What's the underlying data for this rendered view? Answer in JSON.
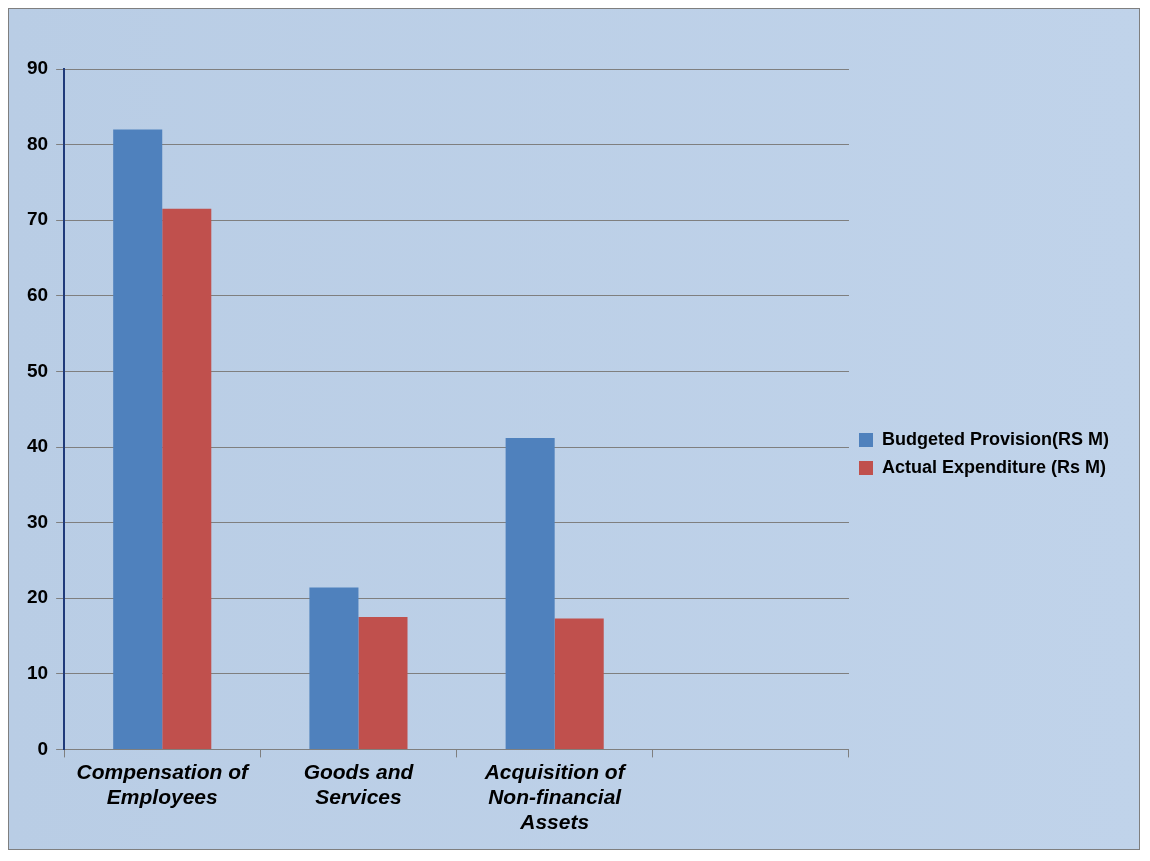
{
  "chart_data": {
    "type": "bar",
    "categories": [
      "Compensation of Employees",
      "Goods and Services",
      "Acquisition of Non-financial Assets",
      null
    ],
    "series": [
      {
        "name": "Budgeted Provision(RS M)",
        "color": "#4f81bd",
        "values": [
          82,
          21.4,
          41.2,
          null
        ]
      },
      {
        "name": "Actual Expenditure (Rs M)",
        "color": "#c0504d",
        "values": [
          71.5,
          17.5,
          17.3,
          null
        ]
      }
    ],
    "ylim": [
      0,
      90
    ],
    "yticks": [
      0,
      10,
      20,
      30,
      40,
      50,
      60,
      70,
      80,
      90
    ],
    "grid": "y",
    "legend": "right"
  }
}
